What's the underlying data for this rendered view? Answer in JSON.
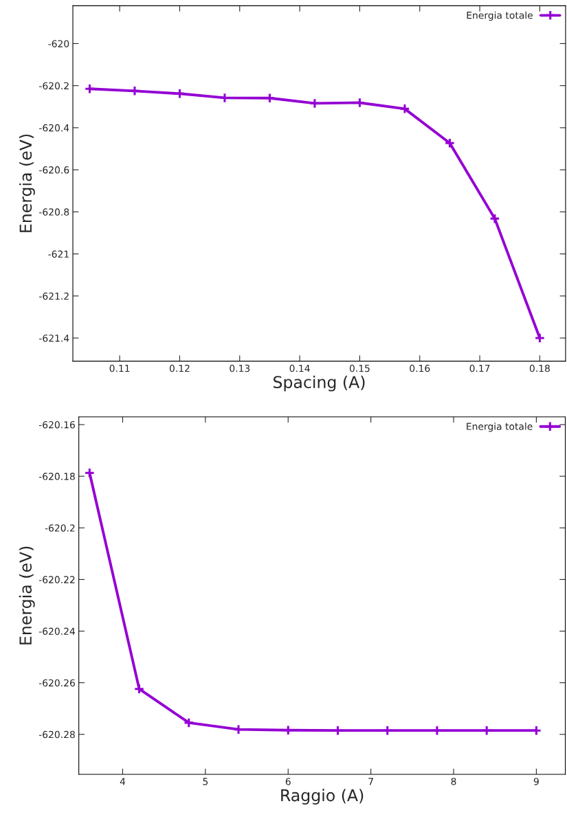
{
  "chart_data": [
    {
      "type": "line",
      "xlabel": "Spacing (A)",
      "ylabel": "Energia (eV)",
      "x": [
        0.105,
        0.1125,
        0.12,
        0.1275,
        0.135,
        0.1425,
        0.15,
        0.1575,
        0.165,
        0.1725,
        0.18
      ],
      "series": [
        {
          "name": "Energia totale",
          "color": "#9400d3",
          "values": [
            -620.215,
            -620.225,
            -620.238,
            -620.258,
            -620.259,
            -620.284,
            -620.281,
            -620.31,
            -620.473,
            -620.832,
            -621.4
          ]
        }
      ],
      "xlim": [
        0.1022,
        0.1843
      ],
      "xticks": [
        0.11,
        0.12,
        0.13,
        0.14,
        0.15,
        0.16,
        0.17,
        0.18
      ],
      "ylim": [
        -621.51,
        -619.82
      ],
      "yticks": [
        -620,
        -620.2,
        -620.4,
        -620.6,
        -620.8,
        -621,
        -621.2,
        -621.4
      ],
      "legend": "top right",
      "grid": false,
      "marker": "cross",
      "line_style": "solid"
    },
    {
      "type": "line",
      "xlabel": "Raggio (A)",
      "ylabel": "Energia (eV)",
      "x": [
        3.6,
        4.2,
        4.8,
        5.4,
        6.0,
        6.6,
        7.2,
        7.8,
        8.4,
        9.0
      ],
      "series": [
        {
          "name": "Energia totale",
          "color": "#9400d3",
          "values": [
            -620.1787,
            -620.2624,
            -620.2755,
            -620.2781,
            -620.2784,
            -620.2785,
            -620.2785,
            -620.2785,
            -620.2785,
            -620.2785
          ]
        }
      ],
      "xlim": [
        3.47,
        9.35
      ],
      "xticks": [
        4,
        5,
        6,
        7,
        8,
        9
      ],
      "ylim": [
        -620.2955,
        -620.157
      ],
      "yticks": [
        -620.16,
        -620.18,
        -620.2,
        -620.22,
        -620.24,
        -620.26,
        -620.28
      ],
      "legend": "top right",
      "grid": false,
      "marker": "cross",
      "line_style": "solid"
    }
  ]
}
